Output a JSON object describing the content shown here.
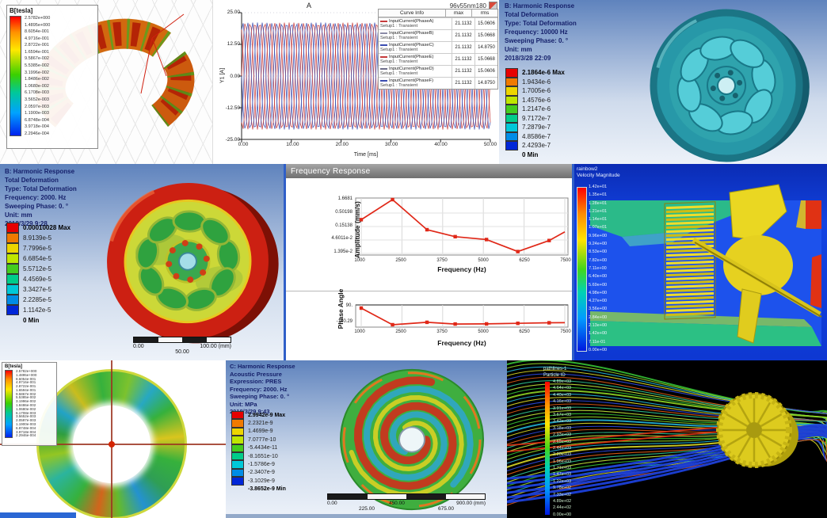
{
  "colors": {
    "ansys_navy": "#16216b",
    "ansys_bands": [
      "#e60000",
      "#f07a00",
      "#edd500",
      "#bfe600",
      "#44cc1e",
      "#00cc8a",
      "#00c8d8",
      "#008ce6",
      "#0026d8"
    ],
    "curve_red": "#c53b3b",
    "curve_blue": "#3a4cb0",
    "response_red": "#e02818",
    "stream_palette": [
      "#35c135",
      "#8fd425",
      "#22b3d6",
      "#d9d826",
      "#2b49e0",
      "#e05a14",
      "#2fc18f",
      "#bfe23a"
    ]
  },
  "panels": {
    "maxwell_torus": {
      "legend_title": "B[tesla]",
      "values": [
        "2.5782e+000",
        "1.4895e+000",
        "8.6054e-001",
        "4.9716e-001",
        "2.8722e-001",
        "1.6594e-001",
        "9.5867e-002",
        "5.5385e-002",
        "3.1996e-002",
        "1.8486e-002",
        "1.0680e-002",
        "6.1708e-003",
        "3.5652e-003",
        "2.0597e-003",
        "1.1900e-003",
        "6.8748e-004",
        "3.9718e-004",
        "2.2946e-004"
      ]
    },
    "current_plot": {
      "title": "A",
      "corner_label": "96v55nm180",
      "ylabel": "Y1 [A]",
      "xlabel": "Time [ms]",
      "y_ticks": [
        "25.00",
        "12.50",
        "0.00",
        "-12.50",
        "-25.00"
      ],
      "x_ticks": [
        "0.00",
        "10.00",
        "20.00",
        "30.00",
        "40.00",
        "50.00"
      ],
      "legend": {
        "header": [
          "Curve Info",
          "max",
          "rms"
        ],
        "rows": [
          {
            "label": "InputCurrent(PhaseA)",
            "setup": "Setup1 : Transient",
            "max": "21.1132",
            "rms": "15.0606",
            "color": "#c53b3b"
          },
          {
            "label": "InputCurrent(PhaseB)",
            "setup": "Setup1 : Transient",
            "max": "21.1132",
            "rms": "15.0668",
            "color": "#8a8aa6"
          },
          {
            "label": "InputCurrent(PhaseC)",
            "setup": "Setup1 : Transient",
            "max": "21.1132",
            "rms": "14.8750",
            "color": "#3a4cb0"
          },
          {
            "label": "InputCurrent(PhaseE)",
            "setup": "Setup1 : Transient",
            "max": "21.1132",
            "rms": "15.0668",
            "color": "#c53b3b"
          },
          {
            "label": "InputCurrent(PhaseD)",
            "setup": "Setup1 : Transient",
            "max": "21.1132",
            "rms": "15.0606",
            "color": "#6e6e8a"
          },
          {
            "label": "InputCurrent(PhaseF)",
            "setup": "Setup1 : Transient",
            "max": "21.1132",
            "rms": "14.8750",
            "color": "#3a4cb0"
          }
        ]
      }
    },
    "harmonic_b_10000": {
      "lines": [
        "B: Harmonic Response",
        "Total Deformation",
        "Type: Total Deformation",
        "Frequency: 10000 Hz",
        "Sweeping Phase: 0. °",
        "Unit: mm",
        "2018/3/28 22:09"
      ],
      "colorbar": [
        "2.1864e-6 Max",
        "1.9434e-6",
        "1.7005e-6",
        "1.4576e-6",
        "1.2147e-6",
        "9.7172e-7",
        "7.2879e-7",
        "4.8586e-7",
        "2.4293e-7",
        "0 Min"
      ]
    },
    "harmonic_b_2000": {
      "lines": [
        "B: Harmonic Response",
        "Total Deformation",
        "Type: Total Deformation",
        "Frequency: 2000. Hz",
        "Sweeping Phase: 0. °",
        "Unit: mm",
        "2018/3/29 9:28"
      ],
      "colorbar": [
        "0.00010028 Max",
        "8.9139e-5",
        "7.7996e-5",
        "6.6854e-5",
        "5.5712e-5",
        "4.4569e-5",
        "3.3427e-5",
        "2.2285e-5",
        "1.1142e-5",
        "0 Min"
      ],
      "ruler": {
        "start": "0.00",
        "end": "100.00 (mm)",
        "mid": "50.00"
      }
    },
    "freq_response": {
      "window_title": "Frequency Response",
      "amp": {
        "ylabel": "Amplitude (mm/s)",
        "xlabel": "Frequency (Hz)",
        "y_ticks": [
          "1.6681",
          "0.50198",
          "0.15138",
          "4.6011e-2",
          "1.395e-2"
        ],
        "x_ticks": [
          "1000",
          "2500",
          "3750",
          "5000",
          "6250",
          "7500"
        ]
      },
      "phase": {
        "ylabel": "Phase Angle",
        "xlabel": "Frequency (Hz)",
        "y_ticks": [
          "90.",
          "-150.29"
        ],
        "x_ticks": [
          "1000",
          "2500",
          "3750",
          "5000",
          "6250",
          "7500"
        ]
      }
    },
    "cfd_velocity": {
      "header": [
        "rainbow2",
        "Velocity Magnitude"
      ],
      "labels": [
        "1.42e+01",
        "1.35e+01",
        "1.28e+01",
        "1.21e+01",
        "1.14e+01",
        "1.07e+01",
        "9.96e+00",
        "9.24e+00",
        "8.53e+00",
        "7.82e+00",
        "7.11e+00",
        "6.40e+00",
        "5.69e+00",
        "4.98e+00",
        "4.27e+00",
        "3.56e+00",
        "2.84e+00",
        "2.13e+00",
        "1.42e+00",
        "7.11e-01",
        "0.00e+00"
      ]
    },
    "maxwell_rotor": {
      "legend_title": "B[tesla]",
      "values": [
        "2.5782e+000",
        "1.4895e+000",
        "8.6054e-001",
        "4.9716e-001",
        "2.8722e-001",
        "1.6594e-001",
        "9.5867e-002",
        "5.5385e-002",
        "3.1996e-002",
        "1.8486e-002",
        "1.0680e-002",
        "6.1708e-003",
        "3.5652e-003",
        "2.0597e-003",
        "1.1900e-003",
        "6.8748e-004",
        "3.9718e-004",
        "2.2946e-004"
      ]
    },
    "harmonic_c_acoustic": {
      "lines": [
        "C: Harmonic Response",
        "Acoustic Pressure",
        "Expression: PRES",
        "Frequency: 2000. Hz",
        "Sweeping Phase: 0. °",
        "Unit: MPa",
        "2018/3/29 9:43"
      ],
      "colorbar": [
        "2.9942e-9 Max",
        "2.2321e-9",
        "1.4699e-9",
        "7.0777e-10",
        "-5.4434e-11",
        "-8.1651e-10",
        "-1.5786e-9",
        "-2.3407e-9",
        "-3.1029e-9",
        "-3.8652e-9 Min"
      ],
      "ruler": {
        "start": "0.00",
        "mid": "450.00",
        "end": "900.00 (mm)",
        "q1": "225.00",
        "q3": "675.00"
      }
    },
    "pathlines": {
      "header": [
        "pathlines-1",
        "Particle ID"
      ],
      "labels": [
        "4.89e+03",
        "4.64e+03",
        "4.40e+03",
        "4.16e+03",
        "3.91e+03",
        "3.67e+03",
        "3.42e+03",
        "3.18e+03",
        "2.93e+03",
        "2.69e+03",
        "2.44e+03",
        "2.20e+03",
        "1.96e+03",
        "1.71e+03",
        "1.47e+03",
        "1.22e+03",
        "9.78e+02",
        "7.33e+02",
        "4.89e+02",
        "2.44e+02",
        "0.00e+00"
      ]
    }
  },
  "chart_data": [
    {
      "type": "line",
      "title": "A",
      "subtitle": "96v55nm180",
      "xlabel": "Time [ms]",
      "ylabel": "Y1 [A]",
      "x_range_ms": [
        0,
        50
      ],
      "ylim": [
        -25,
        25
      ],
      "waveform": {
        "shape": "sine",
        "amplitude": 21.1132,
        "cycles_in_range": 17,
        "phase_step_deg": 60
      },
      "series": [
        {
          "name": "InputCurrent(PhaseA) Setup1 : Transient",
          "max": 21.1132,
          "rms": 15.0606
        },
        {
          "name": "InputCurrent(PhaseB) Setup1 : Transient",
          "max": 21.1132,
          "rms": 15.0668
        },
        {
          "name": "InputCurrent(PhaseC) Setup1 : Transient",
          "max": 21.1132,
          "rms": 14.875
        },
        {
          "name": "InputCurrent(PhaseE) Setup1 : Transient",
          "max": 21.1132,
          "rms": 15.0668
        },
        {
          "name": "InputCurrent(PhaseD) Setup1 : Transient",
          "max": 21.1132,
          "rms": 15.0606
        },
        {
          "name": "InputCurrent(PhaseF) Setup1 : Transient",
          "max": 21.1132,
          "rms": 14.875
        }
      ]
    },
    {
      "type": "line",
      "title": "Frequency Response",
      "amplitude_plot": {
        "xlabel": "Frequency (Hz)",
        "ylabel": "Amplitude (mm/s)",
        "yscale": "log",
        "xlim": [
          1000,
          7500
        ],
        "points": [
          [
            1000,
            0.28
          ],
          [
            2000,
            1.6681
          ],
          [
            3100,
            0.115
          ],
          [
            4000,
            0.062
          ],
          [
            5000,
            0.048
          ],
          [
            6000,
            0.0165
          ],
          [
            7000,
            0.044
          ],
          [
            7500,
            0.095
          ]
        ]
      },
      "phase_plot": {
        "xlabel": "Frequency (Hz)",
        "ylabel": "Phase Angle",
        "xlim": [
          1000,
          7500
        ],
        "ylim": [
          -150.29,
          90
        ],
        "points": [
          [
            1000,
            90
          ],
          [
            2000,
            -150
          ],
          [
            3100,
            -115
          ],
          [
            4000,
            -140
          ],
          [
            5000,
            -138
          ],
          [
            6000,
            -130
          ],
          [
            7000,
            -122
          ],
          [
            7500,
            -120
          ]
        ]
      }
    }
  ]
}
